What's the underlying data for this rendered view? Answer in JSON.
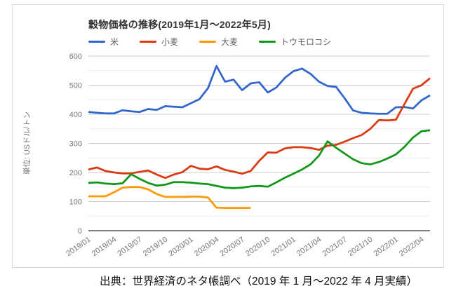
{
  "caption": "出典：世界経済のネタ帳調べ（2019 年 1 月～2022 年 4 月実績）",
  "colors": {
    "rice_blue": "#3366cc",
    "wheat_red": "#dc3912",
    "barley_orange": "#ff9900",
    "corn_green": "#109618",
    "grid_major": "#cccccc",
    "grid_minor": "#ebebeb",
    "axis_line": "#333333",
    "tick_text": "#757575",
    "panel_border": "#d9d9d9"
  },
  "chart_data": {
    "type": "line",
    "title": "穀物価格の推移(2019年1月～2022年5月)",
    "y_axis_unit": "単位: USドル/トン",
    "y_min": 0,
    "y_max": 600,
    "y_tick_step": 100,
    "y_minor_step": 50,
    "y_tick_labels": [
      "0",
      "100",
      "200",
      "300",
      "400",
      "500",
      "600"
    ],
    "grid": true,
    "legend_position": "top",
    "month_count": 41,
    "x_start": "2019/01",
    "x_end": "2022/05",
    "x_tick_every_months": 3,
    "x_tick_labels": [
      "2019/01",
      "2019/04",
      "2019/07",
      "2019/10",
      "2020/01",
      "2020/04",
      "2020/07",
      "2020/10",
      "2021/01",
      "2021/04",
      "2021/07",
      "2021/10",
      "2022/01",
      "2022/04"
    ],
    "series": [
      {
        "name": "米",
        "color": "#3366cc",
        "values": [
          408,
          405,
          403,
          403,
          414,
          410,
          408,
          418,
          415,
          428,
          426,
          424,
          438,
          452,
          490,
          566,
          512,
          519,
          483,
          506,
          510,
          475,
          492,
          525,
          548,
          557,
          539,
          512,
          497,
          494,
          455,
          413,
          405,
          403,
          402,
          402,
          424,
          425,
          420,
          448,
          465
        ]
      },
      {
        "name": "小麦",
        "color": "#dc3912",
        "values": [
          210,
          217,
          205,
          200,
          197,
          197,
          202,
          207,
          193,
          181,
          193,
          201,
          223,
          213,
          211,
          221,
          209,
          203,
          196,
          205,
          240,
          269,
          268,
          283,
          287,
          287,
          284,
          278,
          292,
          295,
          306,
          318,
          329,
          350,
          380,
          379,
          381,
          435,
          488,
          500,
          524
        ]
      },
      {
        "name": "大麦",
        "color": "#ff9900",
        "values": [
          118,
          118,
          118,
          132,
          148,
          150,
          150,
          142,
          126,
          116,
          116,
          116,
          117,
          117,
          114,
          79,
          78,
          78,
          78,
          78,
          null,
          null,
          null,
          null,
          null,
          null,
          null,
          null,
          null,
          null,
          null,
          null,
          null,
          null,
          null,
          null,
          null,
          null,
          null,
          null,
          null
        ]
      },
      {
        "name": "トウモロコシ",
        "color": "#109618",
        "values": [
          164,
          166,
          162,
          160,
          163,
          194,
          178,
          164,
          155,
          158,
          167,
          167,
          165,
          162,
          160,
          154,
          148,
          146,
          148,
          152,
          154,
          151,
          166,
          182,
          196,
          210,
          228,
          258,
          307,
          285,
          265,
          245,
          232,
          228,
          236,
          248,
          262,
          288,
          320,
          342,
          345
        ]
      }
    ]
  }
}
